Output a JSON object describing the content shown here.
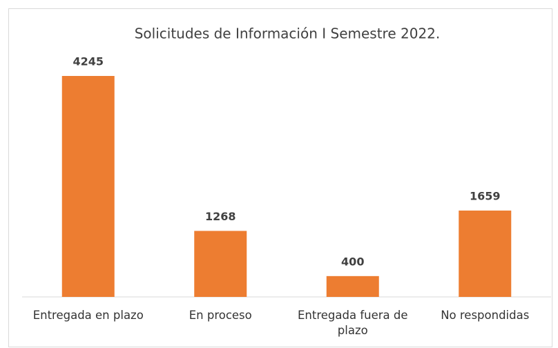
{
  "chart_data": {
    "type": "bar",
    "title": "Solicitudes de Información I Semestre 2022.",
    "categories": [
      "Entregada en plazo",
      "En proceso",
      "Entregada fuera de plazo",
      "No respondidas"
    ],
    "values": [
      4245,
      1268,
      400,
      1659
    ],
    "color": "#ed7d31"
  }
}
